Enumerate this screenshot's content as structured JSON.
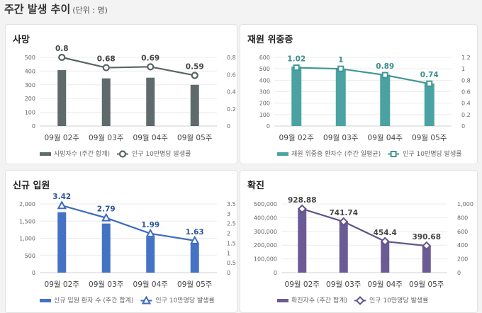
{
  "header": {
    "title": "주간 발생 추이",
    "unit": "(단위 : 명)"
  },
  "chart_data": [
    {
      "type": "bar+line",
      "title": "사망",
      "categories": [
        "09월 02주",
        "09월 03주",
        "09월 04주",
        "09월 05주"
      ],
      "bar_series": {
        "name": "사망자수 (주간 합계)",
        "values": [
          407,
          347,
          352,
          300
        ]
      },
      "line_series": {
        "name": "인구 10만명당 발생률",
        "values": [
          0.8,
          0.68,
          0.69,
          0.59
        ],
        "labels": [
          "0.8",
          "0.68",
          "0.69",
          "0.59"
        ],
        "marker": "circle"
      },
      "left_axis": {
        "range": [
          0,
          500
        ],
        "ticks": [
          "0",
          "100",
          "200",
          "300",
          "400",
          "500"
        ]
      },
      "right_axis": {
        "range": [
          0,
          0.8
        ],
        "ticks": [
          "0",
          "0.2",
          "0.4",
          "0.6",
          "0.8"
        ]
      },
      "color": "#5f6a6a",
      "line_color": "#5a6464",
      "label_color": "#444444",
      "grid": true,
      "legend": "bottom"
    },
    {
      "type": "bar+line",
      "title": "재원 위중증",
      "categories": [
        "09월 02주",
        "09월 03주",
        "09월 04주",
        "09월 05주"
      ],
      "bar_series": {
        "name": "재원 위중증 환자수 (주간 일평균)",
        "values": [
          520,
          502,
          448,
          372
        ]
      },
      "line_series": {
        "name": "인구 10만명당 발생률",
        "values": [
          1.02,
          1,
          0.89,
          0.74
        ],
        "labels": [
          "1.02",
          "1",
          "0.89",
          "0.74"
        ],
        "marker": "square"
      },
      "left_axis": {
        "range": [
          0,
          600
        ],
        "ticks": [
          "0",
          "100",
          "200",
          "300",
          "400",
          "500",
          "600"
        ]
      },
      "right_axis": {
        "range": [
          0,
          1.2
        ],
        "ticks": [
          "0",
          "0.2",
          "0.4",
          "0.6",
          "0.8",
          "1",
          "1.2"
        ]
      },
      "color": "#4aa3a2",
      "line_color": "#3f9796",
      "label_color": "#3a8f8e",
      "grid": true,
      "legend": "bottom"
    },
    {
      "type": "bar+line",
      "title": "신규 입원",
      "categories": [
        "09월 02주",
        "09월 03주",
        "09월 04주",
        "09월 05주"
      ],
      "bar_series": {
        "name": "신규 입원 환자 수 (주간 합계)",
        "values": [
          1760,
          1430,
          1030,
          840
        ]
      },
      "line_series": {
        "name": "인구 10만명당 발생률",
        "values": [
          3.42,
          2.79,
          1.99,
          1.63
        ],
        "labels": [
          "3.42",
          "2.79",
          "1.99",
          "1.63"
        ],
        "marker": "triangle"
      },
      "left_axis": {
        "range": [
          0,
          2000
        ],
        "ticks": [
          "0",
          "500",
          "1,000",
          "1,500",
          "2,000"
        ]
      },
      "right_axis": {
        "range": [
          0,
          3.5
        ],
        "ticks": [
          "0",
          "0.5",
          "1",
          "1.5",
          "2",
          "2.5",
          "3",
          "3.5"
        ]
      },
      "color": "#4472c4",
      "line_color": "#3d6bbd",
      "label_color": "#2f5597",
      "grid": true,
      "legend": "bottom"
    },
    {
      "type": "bar+line",
      "title": "확진",
      "categories": [
        "09월 02주",
        "09월 03주",
        "09월 04주",
        "09월 05주"
      ],
      "bar_series": {
        "name": "확진자수 (주간 합계)",
        "values": [
          470000,
          375000,
          232000,
          198000
        ]
      },
      "line_series": {
        "name": "인구 10만명당 발생률",
        "values": [
          928.88,
          741.74,
          454.4,
          390.68
        ],
        "labels": [
          "928.88",
          "741.74",
          "454.4",
          "390.68"
        ],
        "marker": "diamond"
      },
      "left_axis": {
        "range": [
          0,
          500000
        ],
        "ticks": [
          "0",
          "100,000",
          "200,000",
          "300,000",
          "400,000",
          "500,000"
        ]
      },
      "right_axis": {
        "range": [
          0,
          1000
        ],
        "ticks": [
          "0",
          "200",
          "400",
          "600",
          "800",
          "1,000"
        ]
      },
      "color": "#6b5b95",
      "line_color": "#62548a",
      "label_color": "#444444",
      "grid": true,
      "legend": "bottom"
    }
  ]
}
